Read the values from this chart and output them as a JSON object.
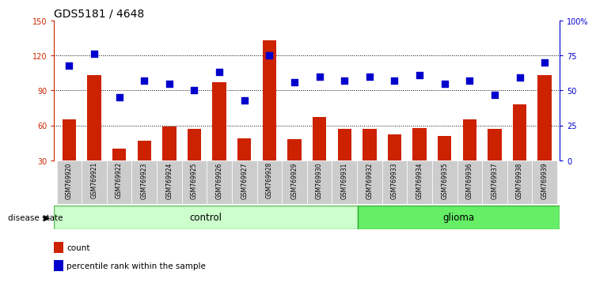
{
  "title": "GDS5181 / 4648",
  "samples": [
    "GSM769920",
    "GSM769921",
    "GSM769922",
    "GSM769923",
    "GSM769924",
    "GSM769925",
    "GSM769926",
    "GSM769927",
    "GSM769928",
    "GSM769929",
    "GSM769930",
    "GSM769931",
    "GSM769932",
    "GSM769933",
    "GSM769934",
    "GSM769935",
    "GSM769936",
    "GSM769937",
    "GSM769938",
    "GSM769939"
  ],
  "bar_values": [
    65,
    103,
    40,
    47,
    59,
    57,
    97,
    49,
    133,
    48,
    67,
    57,
    57,
    52,
    58,
    51,
    65,
    57,
    78,
    103
  ],
  "dot_values_pct": [
    68,
    76,
    45,
    57,
    55,
    50,
    63,
    43,
    75,
    56,
    60,
    57,
    60,
    57,
    61,
    55,
    57,
    47,
    59,
    70
  ],
  "control_count": 12,
  "glioma_count": 8,
  "ylim_left": [
    30,
    150
  ],
  "ylim_right": [
    0,
    100
  ],
  "yticks_left": [
    30,
    60,
    90,
    120,
    150
  ],
  "yticks_right": [
    0,
    25,
    50,
    75,
    100
  ],
  "ytick_labels_right": [
    "0",
    "25",
    "50",
    "75",
    "100%"
  ],
  "bar_color": "#cc2200",
  "dot_color": "#0000cc",
  "control_fill": "#ccffcc",
  "glioma_fill": "#66ee66",
  "control_edge": "#55bb55",
  "glioma_edge": "#33aa33",
  "bg_color": "#cccccc",
  "legend_count": "count",
  "legend_pct": "percentile rank within the sample",
  "disease_state_label": "disease state",
  "control_label": "control",
  "glioma_label": "glioma",
  "gridline_y": [
    60,
    90,
    120
  ],
  "title_fontsize": 10,
  "tick_fontsize": 7,
  "label_fontsize": 8
}
